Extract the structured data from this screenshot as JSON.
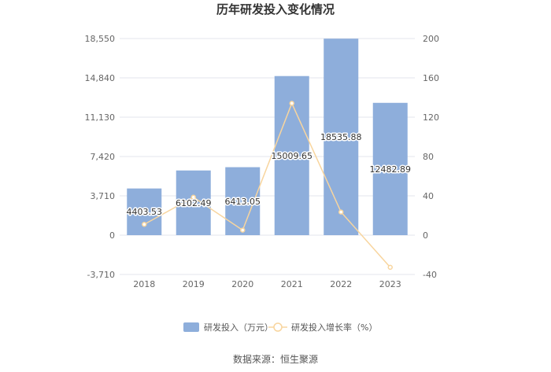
{
  "chart_data": {
    "type": "bar",
    "title": "历年研发投入变化情况",
    "categories": [
      "2018",
      "2019",
      "2020",
      "2021",
      "2022",
      "2023"
    ],
    "series": [
      {
        "name": "研发投入（万元）",
        "type": "bar",
        "axis": "left",
        "color": "#8eaedb",
        "values": [
          4403.53,
          6102.49,
          6413.05,
          15009.65,
          18535.88,
          12482.89
        ],
        "labels": [
          "4403.53",
          "6102.49",
          "6413.05",
          "15009.65",
          "18535.88",
          "12482.89"
        ]
      },
      {
        "name": "研发投入增长率（%）",
        "type": "line",
        "axis": "right",
        "color": "#f8d59e",
        "values": [
          11,
          38.6,
          5.1,
          134.1,
          23.5,
          -32.7
        ]
      }
    ],
    "y_left": {
      "min": -3710,
      "max": 18550,
      "ticks": [
        -3710,
        0,
        3710,
        7420,
        11130,
        14840,
        18550
      ],
      "tick_labels": [
        "-3,710",
        "0",
        "3,710",
        "7,420",
        "11,130",
        "14,840",
        "18,550"
      ]
    },
    "y_right": {
      "min": -40,
      "max": 200,
      "ticks": [
        -40,
        0,
        40,
        80,
        120,
        160,
        200
      ],
      "tick_labels": [
        "-40",
        "0",
        "40",
        "80",
        "120",
        "160",
        "200"
      ]
    },
    "grid": true,
    "legend_position": "bottom"
  },
  "source_text": "数据来源：恒生聚源"
}
